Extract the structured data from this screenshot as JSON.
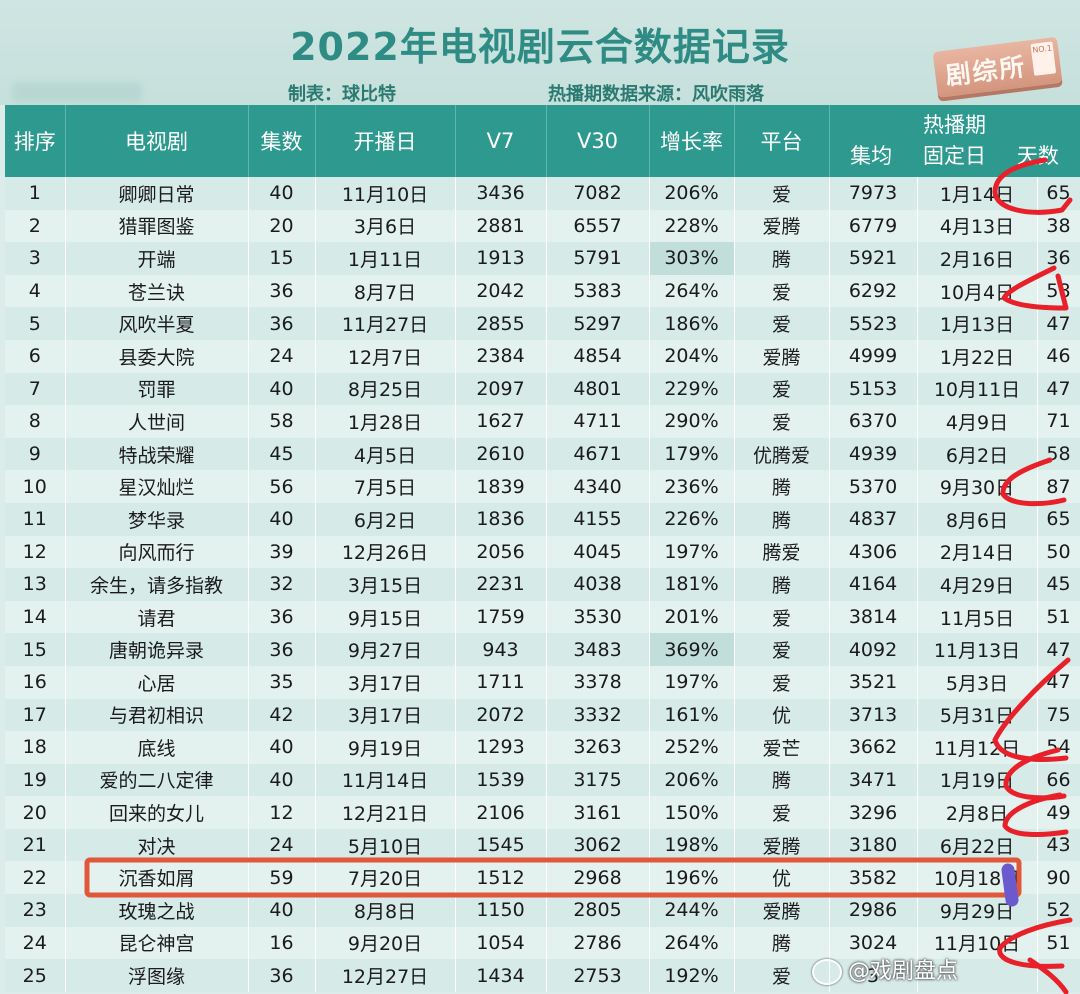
{
  "title": "2022年电视剧云合数据记录",
  "credit": "制表：球比特",
  "source": "热播期数据来源：风吹雨落",
  "stamp": {
    "text": "剧综所",
    "badge": "NO.1"
  },
  "headers": {
    "rank": "排序",
    "drama": "电视剧",
    "episodes": "集数",
    "premiere": "开播日",
    "v7": "V7",
    "v30": "V30",
    "growth": "增长率",
    "platform": "平台",
    "hot_period": "热播期",
    "avg": "集均",
    "fixed_day": "固定日",
    "days": "天数"
  },
  "rows": [
    {
      "rank": "1",
      "name": "卿卿日常",
      "episodes": "40",
      "premiere": "11月10日",
      "v7": "3436",
      "v30": "7082",
      "growth": "206%",
      "platform": "爱",
      "avg": "7973",
      "fixed": "1月14日",
      "days": "65"
    },
    {
      "rank": "2",
      "name": "猎罪图鉴",
      "episodes": "20",
      "premiere": "3月6日",
      "v7": "2881",
      "v30": "6557",
      "growth": "228%",
      "platform": "爱腾",
      "avg": "6779",
      "fixed": "4月13日",
      "days": "38"
    },
    {
      "rank": "3",
      "name": "开端",
      "episodes": "15",
      "premiere": "1月11日",
      "v7": "1913",
      "v30": "5791",
      "growth": "303%",
      "platform": "腾",
      "avg": "5921",
      "fixed": "2月16日",
      "days": "36"
    },
    {
      "rank": "4",
      "name": "苍兰诀",
      "episodes": "36",
      "premiere": "8月7日",
      "v7": "2042",
      "v30": "5383",
      "growth": "264%",
      "platform": "爱",
      "avg": "6292",
      "fixed": "10月4日",
      "days": "58"
    },
    {
      "rank": "5",
      "name": "风吹半夏",
      "episodes": "36",
      "premiere": "11月27日",
      "v7": "2855",
      "v30": "5297",
      "growth": "186%",
      "platform": "爱",
      "avg": "5523",
      "fixed": "1月13日",
      "days": "47"
    },
    {
      "rank": "6",
      "name": "县委大院",
      "episodes": "24",
      "premiere": "12月7日",
      "v7": "2384",
      "v30": "4854",
      "growth": "204%",
      "platform": "爱腾",
      "avg": "4999",
      "fixed": "1月22日",
      "days": "46"
    },
    {
      "rank": "7",
      "name": "罚罪",
      "episodes": "40",
      "premiere": "8月25日",
      "v7": "2097",
      "v30": "4801",
      "growth": "229%",
      "platform": "爱",
      "avg": "5153",
      "fixed": "10月11日",
      "days": "47"
    },
    {
      "rank": "8",
      "name": "人世间",
      "episodes": "58",
      "premiere": "1月28日",
      "v7": "1627",
      "v30": "4711",
      "growth": "290%",
      "platform": "爱",
      "avg": "6370",
      "fixed": "4月9日",
      "days": "71"
    },
    {
      "rank": "9",
      "name": "特战荣耀",
      "episodes": "45",
      "premiere": "4月5日",
      "v7": "2610",
      "v30": "4671",
      "growth": "179%",
      "platform": "优腾爱",
      "avg": "4939",
      "fixed": "6月2日",
      "days": "58"
    },
    {
      "rank": "10",
      "name": "星汉灿烂",
      "episodes": "56",
      "premiere": "7月5日",
      "v7": "1839",
      "v30": "4340",
      "growth": "236%",
      "platform": "腾",
      "avg": "5370",
      "fixed": "9月30日",
      "days": "87"
    },
    {
      "rank": "11",
      "name": "梦华录",
      "episodes": "40",
      "premiere": "6月2日",
      "v7": "1836",
      "v30": "4155",
      "growth": "226%",
      "platform": "腾",
      "avg": "4837",
      "fixed": "8月6日",
      "days": "65"
    },
    {
      "rank": "12",
      "name": "向风而行",
      "episodes": "39",
      "premiere": "12月26日",
      "v7": "2056",
      "v30": "4045",
      "growth": "197%",
      "platform": "腾爱",
      "avg": "4306",
      "fixed": "2月14日",
      "days": "50"
    },
    {
      "rank": "13",
      "name": "余生，请多指教",
      "episodes": "32",
      "premiere": "3月15日",
      "v7": "2231",
      "v30": "4038",
      "growth": "181%",
      "platform": "腾",
      "avg": "4164",
      "fixed": "4月29日",
      "days": "45"
    },
    {
      "rank": "14",
      "name": "请君",
      "episodes": "36",
      "premiere": "9月15日",
      "v7": "1759",
      "v30": "3530",
      "growth": "201%",
      "platform": "爱",
      "avg": "3814",
      "fixed": "11月5日",
      "days": "51"
    },
    {
      "rank": "15",
      "name": "唐朝诡异录",
      "episodes": "36",
      "premiere": "9月27日",
      "v7": "943",
      "v30": "3483",
      "growth": "369%",
      "platform": "爱",
      "avg": "4092",
      "fixed": "11月13日",
      "days": "47"
    },
    {
      "rank": "16",
      "name": "心居",
      "episodes": "35",
      "premiere": "3月17日",
      "v7": "1711",
      "v30": "3378",
      "growth": "197%",
      "platform": "爱",
      "avg": "3521",
      "fixed": "5月3日",
      "days": "47"
    },
    {
      "rank": "17",
      "name": "与君初相识",
      "episodes": "42",
      "premiere": "3月17日",
      "v7": "2072",
      "v30": "3332",
      "growth": "161%",
      "platform": "优",
      "avg": "3713",
      "fixed": "5月31日",
      "days": "75"
    },
    {
      "rank": "18",
      "name": "底线",
      "episodes": "40",
      "premiere": "9月19日",
      "v7": "1293",
      "v30": "3263",
      "growth": "252%",
      "platform": "爱芒",
      "avg": "3662",
      "fixed": "11月12日",
      "days": "54"
    },
    {
      "rank": "19",
      "name": "爱的二八定律",
      "episodes": "40",
      "premiere": "11月14日",
      "v7": "1539",
      "v30": "3175",
      "growth": "206%",
      "platform": "腾",
      "avg": "3471",
      "fixed": "1月19日",
      "days": "66"
    },
    {
      "rank": "20",
      "name": "回来的女儿",
      "episodes": "12",
      "premiere": "12月21日",
      "v7": "2106",
      "v30": "3161",
      "growth": "150%",
      "platform": "爱",
      "avg": "3296",
      "fixed": "2月8日",
      "days": "49"
    },
    {
      "rank": "21",
      "name": "对决",
      "episodes": "24",
      "premiere": "5月10日",
      "v7": "1545",
      "v30": "3062",
      "growth": "198%",
      "platform": "爱腾",
      "avg": "3180",
      "fixed": "6月22日",
      "days": "43"
    },
    {
      "rank": "22",
      "name": "沉香如屑",
      "episodes": "59",
      "premiere": "7月20日",
      "v7": "1512",
      "v30": "2968",
      "growth": "196%",
      "platform": "优",
      "avg": "3582",
      "fixed": "10月18日",
      "days": "90"
    },
    {
      "rank": "23",
      "name": "玫瑰之战",
      "episodes": "40",
      "premiere": "8月8日",
      "v7": "1150",
      "v30": "2805",
      "growth": "244%",
      "platform": "爱腾",
      "avg": "2986",
      "fixed": "9月29日",
      "days": "52"
    },
    {
      "rank": "24",
      "name": "昆仑神宫",
      "episodes": "16",
      "premiere": "9月20日",
      "v7": "1054",
      "v30": "2786",
      "growth": "264%",
      "platform": "腾",
      "avg": "3024",
      "fixed": "11月10日",
      "days": "51"
    },
    {
      "rank": "25",
      "name": "浮图缘",
      "episodes": "36",
      "premiere": "12月27日",
      "v7": "1434",
      "v30": "2753",
      "growth": "192%",
      "platform": "爱",
      "avg": "3",
      "fixed": "",
      "days": ""
    }
  ],
  "highlighted_growth_rows": [
    3,
    15
  ],
  "boxed_row": 22,
  "colors": {
    "header_bg": "#2e9a8f",
    "title": "#2f8c84",
    "annotation_red": "#e8202a",
    "annotation_purple": "#6a5acd",
    "box_orange": "#e0573a"
  },
  "watermark": "@戏剧盘点"
}
